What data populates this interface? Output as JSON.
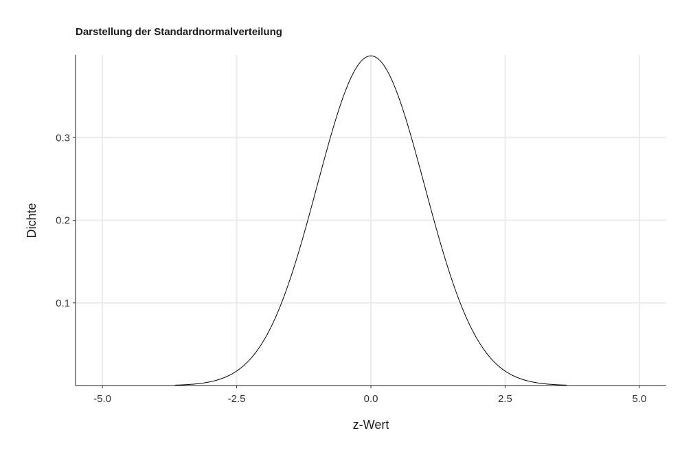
{
  "chart_data": {
    "type": "line",
    "title": "Darstellung der Standardnormalverteilung",
    "xlabel": "z-Wert",
    "ylabel": "Dichte",
    "xlim": [
      -5.5,
      5.5
    ],
    "ylim": [
      0,
      0.4
    ],
    "x_ticks": [
      -5.0,
      -2.5,
      0.0,
      2.5,
      5.0
    ],
    "x_tick_labels": [
      "-5.0",
      "-2.5",
      "0.0",
      "2.5",
      "5.0"
    ],
    "y_ticks": [
      0.1,
      0.2,
      0.3
    ],
    "y_tick_labels": [
      "0.1",
      "0.2",
      "0.3"
    ],
    "grid": true,
    "curve_color": "#000000",
    "series": [
      {
        "distribution": "standard normal density",
        "mean": 0,
        "sd": 1,
        "x": [
          -3.65,
          -3.5,
          -3.25,
          -3.0,
          -2.75,
          -2.5,
          -2.25,
          -2.0,
          -1.75,
          -1.5,
          -1.25,
          -1.0,
          -0.75,
          -0.5,
          -0.25,
          0.0,
          0.25,
          0.5,
          0.75,
          1.0,
          1.25,
          1.5,
          1.75,
          2.0,
          2.25,
          2.5,
          2.75,
          3.0,
          3.25,
          3.5,
          3.65
        ],
        "y": [
          0.0005,
          0.0009,
          0.002,
          0.0044,
          0.0091,
          0.0175,
          0.0317,
          0.054,
          0.0863,
          0.1295,
          0.1826,
          0.242,
          0.3011,
          0.3521,
          0.3867,
          0.3989,
          0.3867,
          0.3521,
          0.3011,
          0.242,
          0.1826,
          0.1295,
          0.0863,
          0.054,
          0.0317,
          0.0175,
          0.0091,
          0.0044,
          0.002,
          0.0009,
          0.0005
        ]
      }
    ]
  }
}
